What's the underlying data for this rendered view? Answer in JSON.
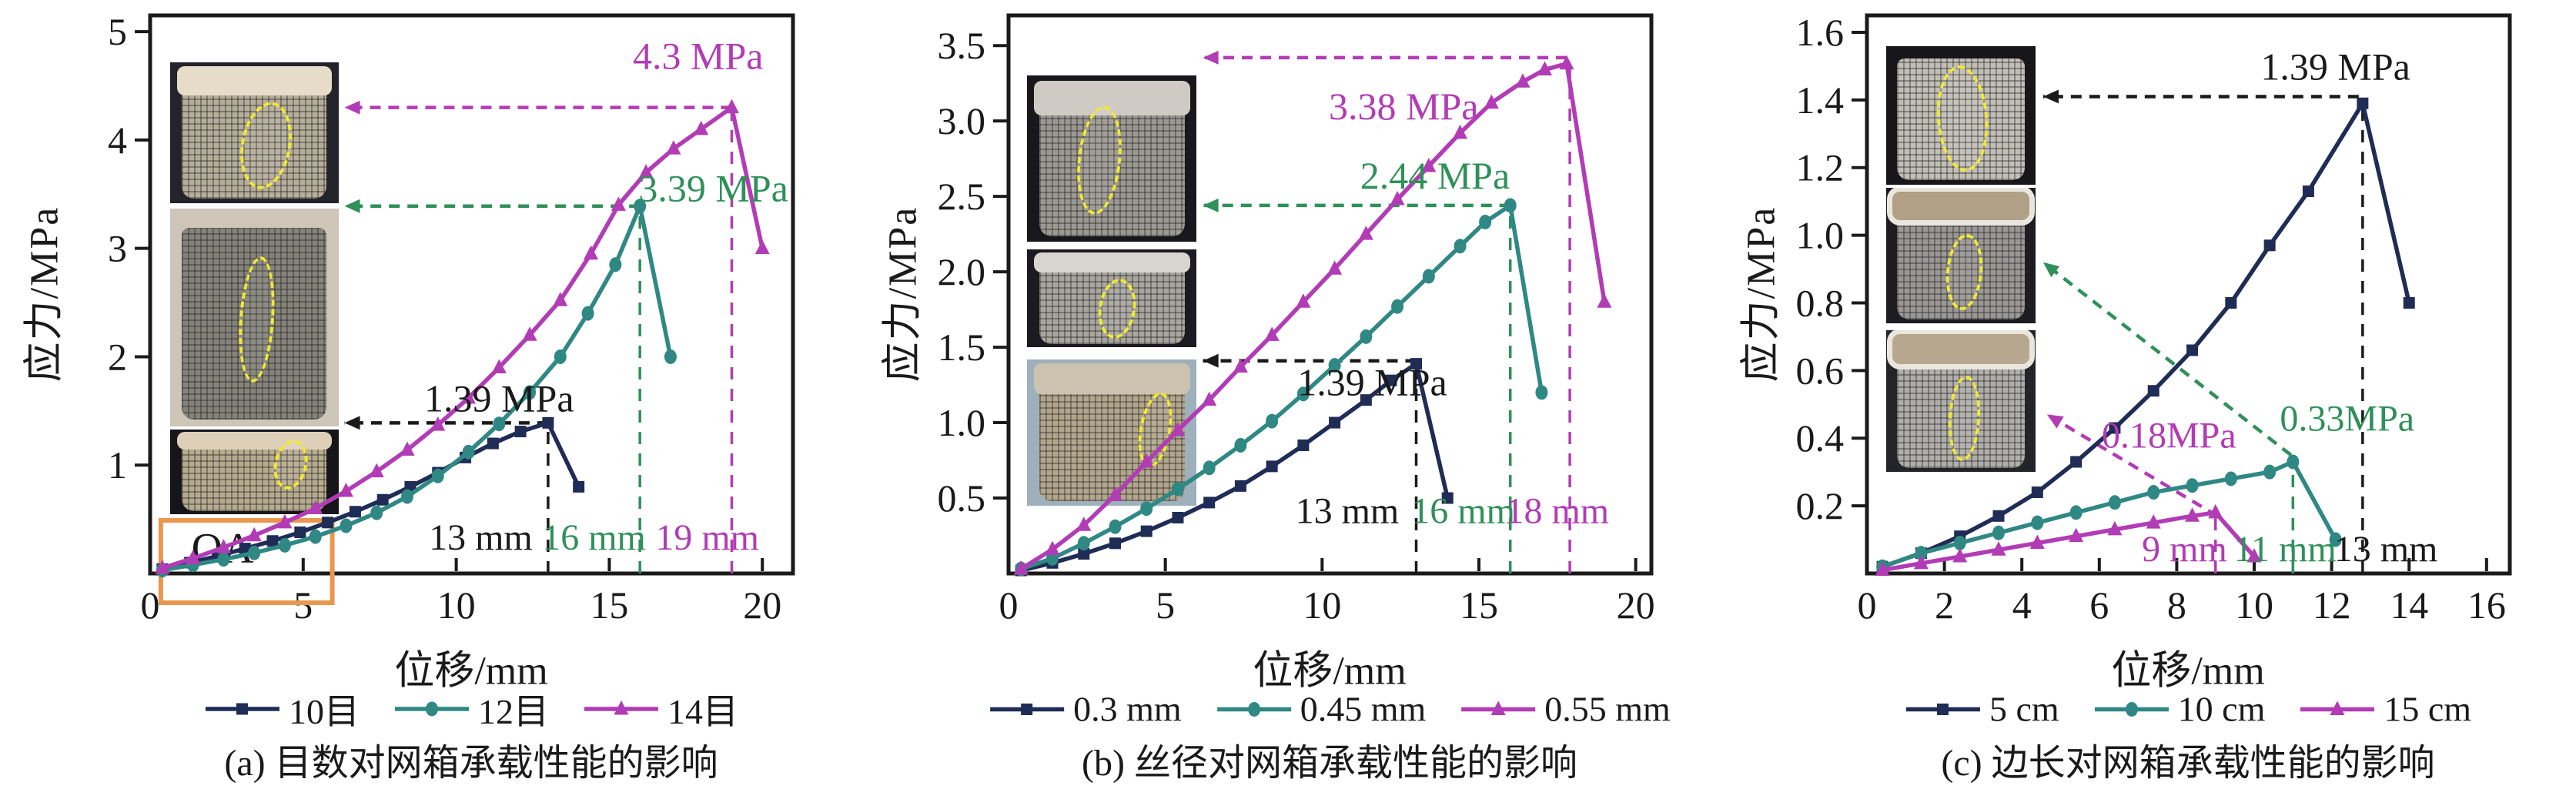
{
  "colors": {
    "navy": "#1f2c55",
    "teal": "#2f8884",
    "green": "#2f9059",
    "magenta": "#b23cb5",
    "black": "#1a1a1a",
    "orange": "#e9974e",
    "axis": "#1a1a1a",
    "ellipse_yellow": "#f2e832"
  },
  "chart_data": [
    {
      "id": "a",
      "type": "line",
      "caption": "(a) 目数对网箱承载性能的影响",
      "xlabel": "位移/mm",
      "ylabel": "应力/MPa",
      "xlim": [
        0,
        21.0
      ],
      "ylim": [
        0,
        5.15
      ],
      "xticks": {
        "values": [
          0,
          5,
          10,
          15,
          20
        ],
        "labels": [
          "0",
          "5",
          "10",
          "15",
          "20"
        ]
      },
      "yticks": {
        "values": [
          1,
          2,
          3,
          4,
          5
        ],
        "labels": [
          "1",
          "2",
          "3",
          "4",
          "5"
        ]
      },
      "grid": false,
      "legend_position": "bottom",
      "series": [
        {
          "name": "10目",
          "color": "navy",
          "marker": "square",
          "x": [
            0.4,
            1.3,
            2.2,
            3.1,
            4.0,
            4.9,
            5.8,
            6.7,
            7.6,
            8.5,
            9.4,
            10.3,
            11.2,
            12.1,
            13.0,
            14.0
          ],
          "y": [
            0.04,
            0.1,
            0.16,
            0.23,
            0.3,
            0.38,
            0.47,
            0.57,
            0.68,
            0.8,
            0.93,
            1.07,
            1.2,
            1.31,
            1.39,
            0.8
          ]
        },
        {
          "name": "12目",
          "color": "teal",
          "marker": "circle",
          "x": [
            0.4,
            1.4,
            2.4,
            3.4,
            4.4,
            5.4,
            6.4,
            7.4,
            8.4,
            9.4,
            10.4,
            11.4,
            12.4,
            13.4,
            14.3,
            15.2,
            16.0,
            17.0
          ],
          "y": [
            0.03,
            0.08,
            0.13,
            0.19,
            0.26,
            0.34,
            0.44,
            0.56,
            0.71,
            0.9,
            1.12,
            1.38,
            1.67,
            2.0,
            2.4,
            2.85,
            3.39,
            2.0
          ]
        },
        {
          "name": "14目",
          "color": "magenta",
          "marker": "triangle",
          "x": [
            0.4,
            1.4,
            2.4,
            3.4,
            4.4,
            5.4,
            6.4,
            7.4,
            8.4,
            9.4,
            10.4,
            11.4,
            12.4,
            13.4,
            14.4,
            15.3,
            16.2,
            17.1,
            18.0,
            19.0,
            20.0
          ],
          "y": [
            0.05,
            0.14,
            0.24,
            0.35,
            0.47,
            0.6,
            0.76,
            0.94,
            1.14,
            1.37,
            1.62,
            1.9,
            2.2,
            2.52,
            2.95,
            3.4,
            3.7,
            3.92,
            4.1,
            4.3,
            3.0
          ]
        }
      ],
      "peaks": [
        {
          "series": "10目",
          "x_mm": 13,
          "y_mpa": 1.39
        },
        {
          "series": "12目",
          "x_mm": 16,
          "y_mpa": 3.39
        },
        {
          "series": "14目",
          "x_mm": 19,
          "y_mpa": 4.3
        }
      ],
      "droplines": [
        {
          "x": 13,
          "y": 1.39,
          "color": "black"
        },
        {
          "x": 16,
          "y": 3.39,
          "color": "green"
        },
        {
          "x": 19,
          "y": 4.3,
          "color": "magenta"
        }
      ],
      "pointers": [
        {
          "x1": 19.0,
          "y1": 4.3,
          "x2": 6.35,
          "y2": 4.3,
          "color": "magenta"
        },
        {
          "x1": 16.0,
          "y1": 3.39,
          "x2": 6.35,
          "y2": 3.39,
          "color": "green"
        },
        {
          "x1": 13.0,
          "y1": 1.39,
          "x2": 6.35,
          "y2": 1.39,
          "color": "black"
        }
      ],
      "annotations": [
        {
          "text": "4.3 MPa",
          "color": "magenta",
          "x": 17.9,
          "y": 4.78,
          "size": 50
        },
        {
          "text": "3.39 MPa",
          "color": "green",
          "x": 18.4,
          "y": 3.56,
          "size": 50
        },
        {
          "text": "1.39 MPa",
          "color": "black",
          "x": 11.4,
          "y": 1.62,
          "size": 50
        },
        {
          "text": "13 mm",
          "color": "black",
          "x": 10.8,
          "y": 0.34,
          "size": 48
        },
        {
          "text": "16 mm",
          "color": "green",
          "x": 14.5,
          "y": 0.34,
          "size": 48
        },
        {
          "text": "19 mm",
          "color": "magenta",
          "x": 18.2,
          "y": 0.34,
          "size": 48
        }
      ],
      "highlight_box": {
        "x1": 0.35,
        "y1": -0.27,
        "x2": 5.95,
        "y2": 0.49,
        "label": "OA",
        "label_x": 1.35,
        "label_y": 0.24,
        "color": "orange"
      },
      "insets": [
        {
          "name": "specimen-photo-14mesh",
          "x1": 0.65,
          "y1": 3.42,
          "x2": 6.15,
          "y2": 4.72,
          "bg": "#23232b",
          "mesh": "#b6ae9b",
          "top": "#e7dcc8",
          "rim": false,
          "ellipse": {
            "l": 42,
            "t": 28,
            "w": 26,
            "h": 58,
            "rot": 10
          }
        },
        {
          "name": "specimen-photo-12mesh",
          "x1": 0.65,
          "y1": 1.36,
          "x2": 6.15,
          "y2": 3.37,
          "bg": "#cdc5b8",
          "mesh": "#85837a",
          "top": null,
          "rim": false,
          "ellipse": {
            "l": 41,
            "t": 22,
            "w": 17,
            "h": 55,
            "rot": 4
          }
        },
        {
          "name": "specimen-photo-10mesh",
          "x1": 0.65,
          "y1": 0.55,
          "x2": 6.15,
          "y2": 1.33,
          "bg": "#15151a",
          "mesh": "#b7ab8f",
          "top": "#ded0b8",
          "rim": false,
          "ellipse": {
            "l": 62,
            "t": 12,
            "w": 16,
            "h": 52,
            "rot": 12
          }
        }
      ]
    },
    {
      "id": "b",
      "type": "line",
      "caption": "(b) 丝径对网箱承载性能的影响",
      "xlabel": "位移/mm",
      "ylabel": "应力/MPa",
      "xlim": [
        0,
        20.5
      ],
      "ylim": [
        0,
        3.7
      ],
      "xticks": {
        "values": [
          0,
          5,
          10,
          15,
          20
        ],
        "labels": [
          "0",
          "5",
          "10",
          "15",
          "20"
        ]
      },
      "yticks": {
        "values": [
          0.5,
          1.0,
          1.5,
          2.0,
          2.5,
          3.0,
          3.5
        ],
        "labels": [
          "0.5",
          "1.0",
          "1.5",
          "2.0",
          "2.5",
          "3.0",
          "3.5"
        ]
      },
      "grid": false,
      "legend_position": "bottom",
      "series": [
        {
          "name": "0.3 mm",
          "color": "navy",
          "marker": "square",
          "x": [
            0.4,
            1.4,
            2.4,
            3.4,
            4.4,
            5.4,
            6.4,
            7.4,
            8.4,
            9.4,
            10.4,
            11.4,
            12.2,
            13.0,
            14.0
          ],
          "y": [
            0.02,
            0.07,
            0.13,
            0.2,
            0.28,
            0.37,
            0.47,
            0.58,
            0.71,
            0.85,
            1.0,
            1.15,
            1.28,
            1.39,
            0.5
          ]
        },
        {
          "name": "0.45 mm",
          "color": "teal",
          "marker": "circle",
          "x": [
            0.4,
            1.4,
            2.4,
            3.4,
            4.4,
            5.4,
            6.4,
            7.4,
            8.4,
            9.4,
            10.4,
            11.4,
            12.4,
            13.4,
            14.4,
            15.2,
            16.0,
            17.0
          ],
          "y": [
            0.03,
            0.1,
            0.2,
            0.31,
            0.43,
            0.56,
            0.7,
            0.85,
            1.01,
            1.19,
            1.38,
            1.57,
            1.77,
            1.97,
            2.17,
            2.33,
            2.44,
            1.2
          ]
        },
        {
          "name": "0.55 mm",
          "color": "magenta",
          "marker": "triangle",
          "x": [
            0.4,
            1.4,
            2.4,
            3.4,
            4.4,
            5.4,
            6.4,
            7.4,
            8.4,
            9.4,
            10.4,
            11.4,
            12.4,
            13.4,
            14.4,
            15.4,
            16.4,
            17.1,
            17.8,
            19.0
          ],
          "y": [
            0.03,
            0.16,
            0.32,
            0.52,
            0.74,
            0.95,
            1.15,
            1.37,
            1.58,
            1.8,
            2.02,
            2.25,
            2.48,
            2.7,
            2.92,
            3.12,
            3.26,
            3.34,
            3.38,
            1.8
          ]
        }
      ],
      "peaks": [
        {
          "series": "0.3 mm",
          "x_mm": 13,
          "y_mpa": 1.39
        },
        {
          "series": "0.45 mm",
          "x_mm": 16,
          "y_mpa": 2.44
        },
        {
          "series": "0.55 mm",
          "x_mm": 18,
          "y_mpa": 3.38
        }
      ],
      "droplines": [
        {
          "x": 13,
          "y": 1.41,
          "color": "black"
        },
        {
          "x": 16,
          "y": 2.44,
          "color": "green"
        },
        {
          "x": 17.9,
          "y": 3.4,
          "color": "magenta"
        }
      ],
      "pointers": [
        {
          "x1": 17.8,
          "y1": 3.42,
          "x2": 6.2,
          "y2": 3.42,
          "color": "magenta"
        },
        {
          "x1": 16.0,
          "y1": 2.44,
          "x2": 6.2,
          "y2": 2.44,
          "color": "green"
        },
        {
          "x1": 13.0,
          "y1": 1.41,
          "x2": 6.2,
          "y2": 1.41,
          "color": "black"
        }
      ],
      "annotations": [
        {
          "text": "3.38 MPa",
          "color": "magenta",
          "x": 12.6,
          "y": 3.1,
          "size": 50
        },
        {
          "text": "2.44 MPa",
          "color": "green",
          "x": 13.6,
          "y": 2.64,
          "size": 50
        },
        {
          "text": "1.39 MPa",
          "color": "black",
          "x": 11.6,
          "y": 1.27,
          "size": 50
        },
        {
          "text": "13 mm",
          "color": "black",
          "x": 10.8,
          "y": 0.42,
          "size": 48
        },
        {
          "text": "16 mm",
          "color": "green",
          "x": 14.5,
          "y": 0.42,
          "size": 48
        },
        {
          "text": "18 mm",
          "color": "magenta",
          "x": 17.5,
          "y": 0.42,
          "size": 48
        }
      ],
      "highlight_box": null,
      "insets": [
        {
          "name": "specimen-photo-055",
          "x1": 0.6,
          "y1": 2.2,
          "x2": 6.0,
          "y2": 3.3,
          "bg": "#17171c",
          "mesh": "#9b9992",
          "top": "#cfcbc4",
          "rim": false,
          "ellipse": {
            "l": 30,
            "t": 18,
            "w": 22,
            "h": 62,
            "rot": 6
          }
        },
        {
          "name": "specimen-photo-045",
          "x1": 0.6,
          "y1": 1.5,
          "x2": 6.0,
          "y2": 2.15,
          "bg": "#1a1a20",
          "mesh": "#a8a69f",
          "top": "#d9d6d0",
          "rim": false,
          "ellipse": {
            "l": 42,
            "t": 30,
            "w": 18,
            "h": 55,
            "rot": 8
          }
        },
        {
          "name": "specimen-photo-03",
          "x1": 0.6,
          "y1": 0.45,
          "x2": 6.0,
          "y2": 1.42,
          "bg": "#9fb0bd",
          "mesh": "#b3a68d",
          "top": "#cbc2b0",
          "rim": false,
          "ellipse": {
            "l": 66,
            "t": 22,
            "w": 15,
            "h": 48,
            "rot": 10
          }
        }
      ]
    },
    {
      "id": "c",
      "type": "line",
      "caption": "(c) 边长对网箱承载性能的影响",
      "xlabel": "位移/mm",
      "ylabel": "应力/MPa",
      "xlim": [
        0,
        16.6
      ],
      "ylim": [
        0,
        1.65
      ],
      "xticks": {
        "values": [
          0,
          2,
          4,
          6,
          8,
          10,
          12,
          14,
          16
        ],
        "labels": [
          "0",
          "2",
          "4",
          "6",
          "8",
          "10",
          "12",
          "14",
          "16"
        ]
      },
      "yticks": {
        "values": [
          0.2,
          0.4,
          0.6,
          0.8,
          1.0,
          1.2,
          1.4,
          1.6
        ],
        "labels": [
          "0.2",
          "0.4",
          "0.6",
          "0.8",
          "1.0",
          "1.2",
          "1.4",
          "1.6"
        ]
      },
      "grid": false,
      "legend_position": "bottom",
      "series": [
        {
          "name": "5 cm",
          "color": "navy",
          "marker": "square",
          "x": [
            0.4,
            1.4,
            2.4,
            3.4,
            4.4,
            5.4,
            6.4,
            7.4,
            8.4,
            9.4,
            10.4,
            11.4,
            12.8,
            14.0
          ],
          "y": [
            0.02,
            0.06,
            0.11,
            0.17,
            0.24,
            0.33,
            0.43,
            0.54,
            0.66,
            0.8,
            0.97,
            1.13,
            1.39,
            0.8
          ]
        },
        {
          "name": "10 cm",
          "color": "teal",
          "marker": "circle",
          "x": [
            0.4,
            1.4,
            2.4,
            3.4,
            4.4,
            5.4,
            6.4,
            7.4,
            8.4,
            9.4,
            10.4,
            11.0,
            12.1
          ],
          "y": [
            0.02,
            0.06,
            0.09,
            0.12,
            0.15,
            0.18,
            0.21,
            0.24,
            0.26,
            0.28,
            0.3,
            0.33,
            0.1
          ]
        },
        {
          "name": "15 cm",
          "color": "magenta",
          "marker": "triangle",
          "x": [
            0.4,
            1.4,
            2.4,
            3.4,
            4.4,
            5.4,
            6.4,
            7.4,
            8.4,
            9.0,
            10.0
          ],
          "y": [
            0.01,
            0.03,
            0.05,
            0.07,
            0.09,
            0.11,
            0.13,
            0.15,
            0.17,
            0.18,
            0.05
          ]
        }
      ],
      "peaks": [
        {
          "series": "5 cm",
          "x_mm": 13,
          "y_mpa": 1.39
        },
        {
          "series": "10 cm",
          "x_mm": 11,
          "y_mpa": 0.33
        },
        {
          "series": "15 cm",
          "x_mm": 9,
          "y_mpa": 0.18
        }
      ],
      "droplines": [
        {
          "x": 12.8,
          "y": 1.39,
          "color": "black"
        },
        {
          "x": 11.0,
          "y": 0.33,
          "color": "green"
        },
        {
          "x": 9.0,
          "y": 0.18,
          "color": "magenta"
        }
      ],
      "pointers": [
        {
          "x1": 12.7,
          "y1": 1.41,
          "x2": 4.55,
          "y2": 1.41,
          "color": "black"
        },
        {
          "x1": 10.95,
          "y1": 0.35,
          "x2": 4.55,
          "y2": 0.92,
          "color": "green"
        },
        {
          "x1": 9.05,
          "y1": 0.17,
          "x2": 4.65,
          "y2": 0.47,
          "color": "magenta"
        }
      ],
      "annotations": [
        {
          "text": "1.39 MPa",
          "color": "black",
          "x": 12.1,
          "y": 1.5,
          "size": 50
        },
        {
          "text": "0.33MPa",
          "color": "green",
          "x": 12.4,
          "y": 0.46,
          "size": 48
        },
        {
          "text": "0.18MPa",
          "color": "magenta",
          "x": 7.8,
          "y": 0.41,
          "size": 48
        },
        {
          "text": "9 mm",
          "color": "magenta",
          "x": 8.2,
          "y": 0.075,
          "size": 48
        },
        {
          "text": "11 mm",
          "color": "green",
          "x": 10.8,
          "y": 0.075,
          "size": 48
        },
        {
          "text": "13 mm",
          "color": "black",
          "x": 13.4,
          "y": 0.075,
          "size": 48
        }
      ],
      "highlight_box": null,
      "insets": [
        {
          "name": "specimen-photo-5cm",
          "x1": 0.5,
          "y1": 1.15,
          "x2": 4.35,
          "y2": 1.56,
          "bg": "#16161b",
          "mesh": "#c2bfb6",
          "top": null,
          "rim": false,
          "ellipse": {
            "l": 34,
            "t": 14,
            "w": 30,
            "h": 72,
            "rot": -4
          }
        },
        {
          "name": "specimen-photo-10cm",
          "x1": 0.5,
          "y1": 0.74,
          "x2": 4.35,
          "y2": 1.14,
          "bg": "#1c1c22",
          "mesh": "#9a9795",
          "top": "#b19f86",
          "rim": true,
          "ellipse": {
            "l": 40,
            "t": 34,
            "w": 20,
            "h": 52,
            "rot": 5
          }
        },
        {
          "name": "specimen-photo-15cm",
          "x1": 0.5,
          "y1": 0.3,
          "x2": 4.35,
          "y2": 0.72,
          "bg": "#23232a",
          "mesh": "#b0aeab",
          "top": "#b7a78e",
          "rim": true,
          "ellipse": {
            "l": 42,
            "t": 32,
            "w": 17,
            "h": 56,
            "rot": 3
          }
        }
      ]
    }
  ]
}
